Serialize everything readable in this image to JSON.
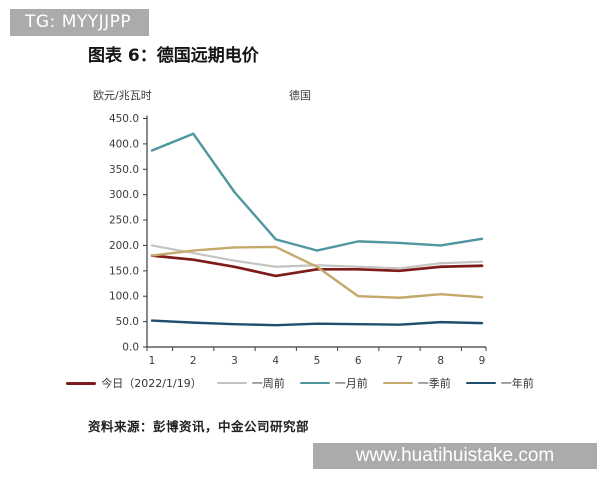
{
  "watermark_top": {
    "text": "TG: MYYJJPP",
    "bg_color": "#ababab",
    "text_color": "#ffffff"
  },
  "title": "图表 6：德国远期电价",
  "source": "资料来源：彭博资讯，中金公司研究部",
  "watermark_bottom": {
    "text": "www.huatihuistake.com",
    "bg_color": "#ababab",
    "text_color": "#ffffff"
  },
  "chart_data": {
    "type": "line",
    "title": "德国",
    "ylabel": "欧元/兆瓦时",
    "xlabel": "",
    "x": [
      1,
      2,
      3,
      4,
      5,
      6,
      7,
      8,
      9
    ],
    "ylim": [
      0,
      450
    ],
    "y_tick_step": 50,
    "y_tick_decimals": 1,
    "grid": false,
    "legend_position": "bottom",
    "axis_color": "#3c3c3c",
    "series": [
      {
        "name": "今日（2022/1/19）",
        "color": "#7e1b1b",
        "width": 2.7,
        "values": [
          180,
          172,
          158,
          140,
          153,
          153,
          150,
          158,
          160
        ]
      },
      {
        "name": "一周前",
        "color": "#c6c4c1",
        "width": 2.2,
        "values": [
          200,
          185,
          170,
          158,
          161,
          158,
          155,
          165,
          168
        ]
      },
      {
        "name": "一月前",
        "color": "#4f97a0",
        "width": 2.4,
        "values": [
          387,
          420,
          305,
          212,
          190,
          208,
          205,
          200,
          213
        ]
      },
      {
        "name": "一季前",
        "color": "#c5a96b",
        "width": 2.4,
        "values": [
          180,
          190,
          196,
          197,
          158,
          100,
          97,
          104,
          98
        ]
      },
      {
        "name": "一年前",
        "color": "#1f4f6e",
        "width": 2.4,
        "values": [
          52,
          48,
          45,
          43,
          46,
          45,
          44,
          49,
          47
        ]
      }
    ]
  }
}
